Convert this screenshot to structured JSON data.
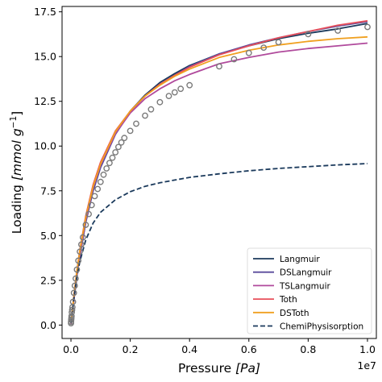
{
  "chart_data": {
    "type": "line",
    "xlabel_main": "Pressure ",
    "xlabel_unit": "[Pa]",
    "ylabel_main": "Loading ",
    "ylabel_unit": "[mmol g",
    "ylabel_exp": "−1",
    "ylabel_close": "]",
    "x_offset_label": "1e7",
    "xlim": [
      -0.03,
      1.03
    ],
    "ylim": [
      -0.75,
      17.8
    ],
    "x_scale_note": "x values in units of 1e7 Pa",
    "x_ticks": [
      0.0,
      0.2,
      0.4,
      0.6,
      0.8,
      1.0
    ],
    "x_tick_labels": [
      "0.0",
      "0.2",
      "0.4",
      "0.6",
      "0.8",
      "1.0"
    ],
    "y_ticks": [
      0.0,
      2.5,
      5.0,
      7.5,
      10.0,
      12.5,
      15.0,
      17.5
    ],
    "y_tick_labels": [
      "0.0",
      "2.5",
      "5.0",
      "7.5",
      "10.0",
      "12.5",
      "15.0",
      "17.5"
    ],
    "grid": false,
    "legend_position": "lower-right",
    "series": [
      {
        "name": "Langmuir",
        "color": "#1b3a5c",
        "dash": "solid",
        "x": [
          0.0005,
          0.005,
          0.01,
          0.02,
          0.03,
          0.05,
          0.075,
          0.1,
          0.15,
          0.2,
          0.25,
          0.3,
          0.35,
          0.4,
          0.5,
          0.6,
          0.7,
          0.8,
          0.9,
          1.0
        ],
        "y": [
          0.08,
          0.75,
          1.45,
          2.75,
          3.85,
          5.75,
          7.55,
          8.85,
          10.7,
          11.95,
          12.85,
          13.55,
          14.05,
          14.5,
          15.15,
          15.6,
          16.0,
          16.3,
          16.55,
          16.85
        ]
      },
      {
        "name": "DSLangmuir",
        "color": "#5a4a9c",
        "dash": "solid",
        "x": [
          0.0005,
          0.005,
          0.01,
          0.02,
          0.03,
          0.05,
          0.075,
          0.1,
          0.15,
          0.2,
          0.25,
          0.3,
          0.35,
          0.4,
          0.5,
          0.6,
          0.7,
          0.8,
          0.9,
          1.0
        ],
        "y": [
          0.08,
          0.75,
          1.45,
          2.75,
          3.85,
          5.75,
          7.5,
          8.8,
          10.65,
          11.9,
          12.8,
          13.45,
          13.95,
          14.45,
          15.15,
          15.65,
          16.05,
          16.4,
          16.7,
          16.95
        ]
      },
      {
        "name": "TSLangmuir",
        "color": "#b04a9c",
        "dash": "solid",
        "x": [
          0.0005,
          0.005,
          0.01,
          0.02,
          0.03,
          0.05,
          0.075,
          0.1,
          0.15,
          0.2,
          0.25,
          0.3,
          0.35,
          0.4,
          0.5,
          0.6,
          0.7,
          0.8,
          0.9,
          1.0
        ],
        "y": [
          0.08,
          0.75,
          1.45,
          2.8,
          3.95,
          5.9,
          7.7,
          8.95,
          10.7,
          11.85,
          12.65,
          13.2,
          13.65,
          14.0,
          14.6,
          14.95,
          15.25,
          15.45,
          15.6,
          15.75
        ]
      },
      {
        "name": "Toth",
        "color": "#e8505b",
        "dash": "solid",
        "x": [
          0.0005,
          0.005,
          0.01,
          0.02,
          0.03,
          0.05,
          0.075,
          0.1,
          0.15,
          0.2,
          0.25,
          0.3,
          0.35,
          0.4,
          0.5,
          0.6,
          0.7,
          0.8,
          0.9,
          1.0
        ],
        "y": [
          0.1,
          0.85,
          1.65,
          3.05,
          4.2,
          6.1,
          7.85,
          9.1,
          10.85,
          11.95,
          12.8,
          13.45,
          13.95,
          14.4,
          15.1,
          15.6,
          16.05,
          16.4,
          16.75,
          17.0
        ]
      },
      {
        "name": "DSToth",
        "color": "#f0a020",
        "dash": "solid",
        "x": [
          0.0005,
          0.005,
          0.01,
          0.02,
          0.03,
          0.05,
          0.075,
          0.1,
          0.15,
          0.2,
          0.25,
          0.3,
          0.35,
          0.4,
          0.5,
          0.6,
          0.7,
          0.8,
          0.9,
          1.0
        ],
        "y": [
          0.1,
          0.85,
          1.6,
          3.0,
          4.15,
          6.0,
          7.75,
          9.0,
          10.8,
          11.95,
          12.8,
          13.4,
          13.9,
          14.3,
          14.95,
          15.35,
          15.65,
          15.85,
          16.0,
          16.1
        ]
      },
      {
        "name": "ChemiPhysisorption",
        "color": "#1b3a5c",
        "dash": "dashed",
        "x": [
          0.0005,
          0.005,
          0.01,
          0.02,
          0.03,
          0.05,
          0.075,
          0.1,
          0.15,
          0.2,
          0.25,
          0.3,
          0.35,
          0.4,
          0.5,
          0.6,
          0.7,
          0.8,
          0.9,
          1.0
        ],
        "y": [
          0.1,
          0.8,
          1.5,
          2.7,
          3.55,
          4.75,
          5.7,
          6.3,
          7.0,
          7.45,
          7.75,
          7.95,
          8.1,
          8.25,
          8.45,
          8.62,
          8.75,
          8.85,
          8.95,
          9.02
        ]
      }
    ],
    "observed": {
      "marker": "open-circle",
      "color": "#7a7a7a",
      "x": [
        0.0002,
        0.0005,
        0.001,
        0.0015,
        0.002,
        0.003,
        0.004,
        0.005,
        0.007,
        0.01,
        0.013,
        0.016,
        0.02,
        0.025,
        0.03,
        0.035,
        0.04,
        0.05,
        0.06,
        0.07,
        0.08,
        0.09,
        0.1,
        0.11,
        0.12,
        0.13,
        0.14,
        0.15,
        0.16,
        0.17,
        0.18,
        0.2,
        0.22,
        0.25,
        0.27,
        0.3,
        0.33,
        0.35,
        0.37,
        0.4,
        0.5,
        0.55,
        0.6,
        0.65,
        0.7,
        0.8,
        0.9,
        1.0
      ],
      "y": [
        0.1,
        0.18,
        0.3,
        0.4,
        0.5,
        0.7,
        0.85,
        1.0,
        1.3,
        1.8,
        2.2,
        2.6,
        3.1,
        3.6,
        4.1,
        4.5,
        4.9,
        5.6,
        6.2,
        6.7,
        7.2,
        7.6,
        8.0,
        8.4,
        8.75,
        9.05,
        9.35,
        9.65,
        9.95,
        10.2,
        10.45,
        10.85,
        11.25,
        11.7,
        12.05,
        12.45,
        12.8,
        13.0,
        13.2,
        13.4,
        14.45,
        14.85,
        15.2,
        15.5,
        15.8,
        16.25,
        16.45,
        16.65
      ]
    }
  }
}
